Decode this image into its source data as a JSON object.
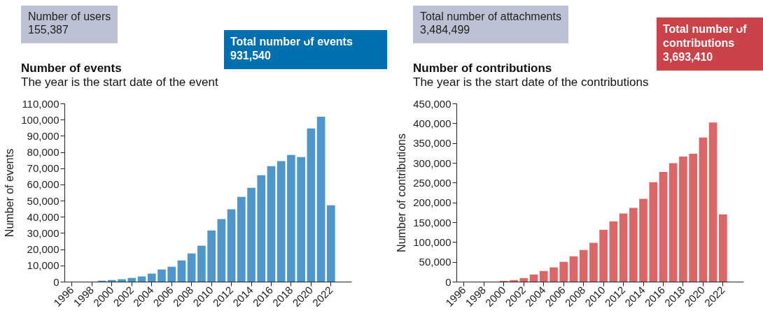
{
  "chart_data": [
    {
      "type": "bar",
      "title": "Number of events",
      "subtitle": "The year is the start date of the event",
      "ylabel": "Number of events",
      "color": "#4f96cc",
      "categories": [
        "1996",
        null,
        "1998",
        null,
        "2000",
        null,
        "2002",
        null,
        "2004",
        null,
        "2006",
        null,
        "2008",
        null,
        "2010",
        null,
        "2012",
        null,
        "2014",
        null,
        "2016",
        null,
        "2018",
        null,
        "2020",
        null,
        "2022"
      ],
      "values": [
        0,
        0,
        0,
        600,
        1000,
        1500,
        2300,
        3200,
        5000,
        7500,
        9200,
        13100,
        17400,
        22200,
        31600,
        38600,
        44600,
        52300,
        57900,
        65700,
        71300,
        74400,
        78200,
        76900,
        94600,
        101800,
        47100
      ],
      "ylim": [
        0,
        110000
      ],
      "yticks": [
        0,
        {
          "value": 10000,
          "label": "10,000"
        },
        {
          "value": 20000,
          "label": "20,000"
        },
        {
          "value": 30000,
          "label": "30,000"
        },
        {
          "value": 40000,
          "label": "40,000"
        },
        {
          "value": 50000,
          "label": "50,000"
        },
        {
          "value": 60000,
          "label": "60,000"
        },
        {
          "value": 70000,
          "label": "70,000"
        },
        {
          "value": 80000,
          "label": "80,000"
        },
        {
          "value": 90000,
          "label": "90,000"
        },
        {
          "value": 100000,
          "label": "100,000"
        },
        {
          "value": 110000,
          "label": "110,000"
        }
      ],
      "grid": false,
      "annotations": [
        "Number of users\n155,387",
        "Total number of events\n931,540"
      ]
    },
    {
      "type": "bar",
      "title": "Number of contributions",
      "subtitle": "The year is the start date of the contributions",
      "ylabel": "Number of contributions",
      "color": "#dc6666",
      "categories": [
        "1996",
        null,
        "1998",
        null,
        "2000",
        null,
        "2002",
        null,
        "2004",
        null,
        "2006",
        null,
        "2008",
        null,
        "2010",
        null,
        "2012",
        null,
        "2014",
        null,
        "2016",
        null,
        "2018",
        null,
        "2020",
        null,
        "2022"
      ],
      "values": [
        0,
        0,
        0,
        0,
        2000,
        4000,
        9000,
        18000,
        27000,
        36000,
        50000,
        64000,
        80000,
        98000,
        131000,
        152000,
        172000,
        186000,
        209000,
        251000,
        277000,
        299000,
        316000,
        323000,
        364000,
        402000,
        170000
      ],
      "ylim": [
        0,
        450000
      ],
      "yticks": [
        0,
        {
          "value": 50000,
          "label": "50,000"
        },
        {
          "value": 100000,
          "label": "100,000"
        },
        {
          "value": 150000,
          "label": "150,000"
        },
        {
          "value": 200000,
          "label": "200,000"
        },
        {
          "value": 250000,
          "label": "250,000"
        },
        {
          "value": 300000,
          "label": "300,000"
        },
        {
          "value": 350000,
          "label": "350,000"
        },
        {
          "value": 400000,
          "label": "400,000"
        },
        {
          "value": 450000,
          "label": "450,000"
        }
      ],
      "grid": false,
      "annotations": [
        "Total number of attachments\n3,484,499",
        "Total number of contributions\n3,693,410"
      ]
    }
  ]
}
